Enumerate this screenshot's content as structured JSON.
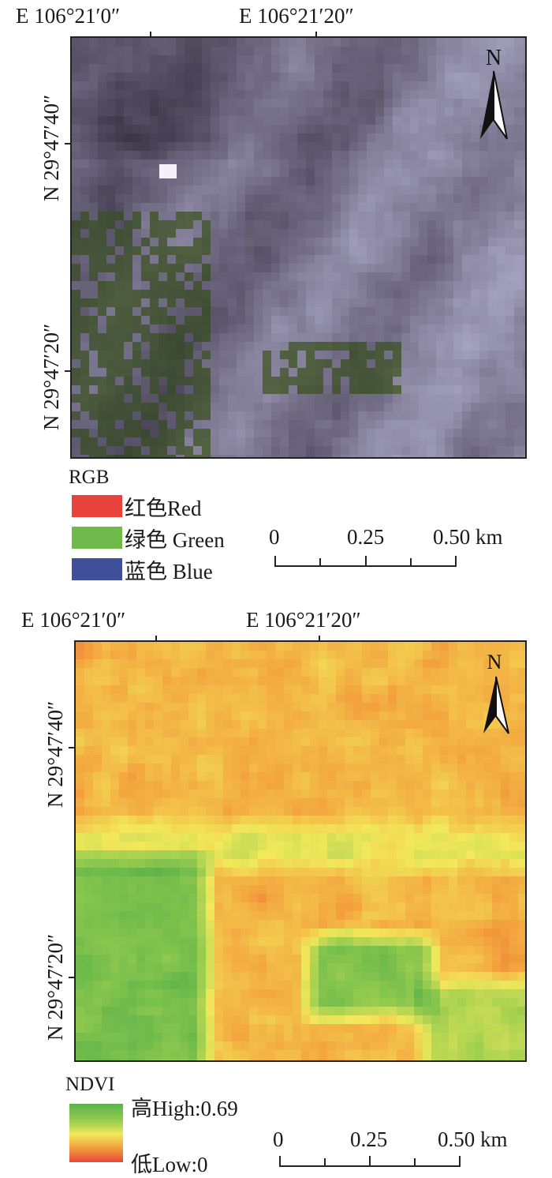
{
  "panel1": {
    "lon_labels": [
      "E 106°21′0″",
      "E 106°21′20″"
    ],
    "lat_labels": [
      "N 29°47′40″",
      "N 29°47′20″"
    ],
    "north": "N",
    "legend": {
      "title": "RGB",
      "items": [
        {
          "label": "红色Red",
          "color": "#e8423d"
        },
        {
          "label": "绿色 Green",
          "color": "#6fb94b"
        },
        {
          "label": "蓝色 Blue",
          "color": "#3f4f99"
        }
      ]
    },
    "scale": {
      "labels": [
        "0",
        "0.25",
        "0.50 km"
      ]
    }
  },
  "panel2": {
    "lon_labels": [
      "E 106°21′0″",
      "E 106°21′20″"
    ],
    "lat_labels": [
      "N 29°47′40″",
      "N 29°47′20″"
    ],
    "north": "N",
    "legend": {
      "title": "NDVI",
      "high": "高High:0.69",
      "low": "低Low:0",
      "ramp": [
        "#5bb34a",
        "#9acd4f",
        "#f2e85a",
        "#f3a03c",
        "#e8463a"
      ]
    },
    "scale": {
      "labels": [
        "0",
        "0.25",
        "0.50 km"
      ]
    }
  }
}
